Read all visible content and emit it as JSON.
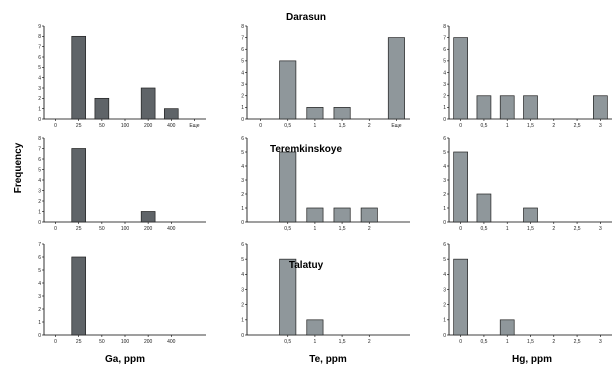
{
  "figure": {
    "ylabel": "Frequency",
    "deposits": [
      "Darasun",
      "Teremkinskoye",
      "Talatuy"
    ],
    "column_labels": [
      "Ga, ppm",
      "Te, ppm",
      "Hg, ppm"
    ],
    "colors": {
      "ga_bar": "#5f6468",
      "te_hg_bar": "#8f979b",
      "edge": "#222222"
    }
  },
  "chart_data": [
    {
      "type": "bar",
      "deposit": "Darasun",
      "element": "Ga",
      "categories": [
        "0",
        "25",
        "50",
        "100",
        "200",
        "400",
        "Еще"
      ],
      "values": [
        0,
        8,
        2,
        0,
        3,
        1,
        0
      ],
      "ylim": [
        0,
        9
      ],
      "grid": false
    },
    {
      "type": "bar",
      "deposit": "Darasun",
      "element": "Te",
      "categories": [
        "0",
        "0,5",
        "1",
        "1,5",
        "2",
        "Еще"
      ],
      "values": [
        0,
        5,
        1,
        1,
        0,
        7
      ],
      "ylim": [
        0,
        8
      ],
      "grid": false
    },
    {
      "type": "bar",
      "deposit": "Darasun",
      "element": "Hg",
      "categories": [
        "0",
        "0,5",
        "1",
        "1,5",
        "2",
        "2,5",
        "3"
      ],
      "values": [
        7,
        2,
        2,
        2,
        0,
        0,
        2
      ],
      "ylim": [
        0,
        8
      ],
      "grid": false
    },
    {
      "type": "bar",
      "deposit": "Teremkinskoye",
      "element": "Ga",
      "categories": [
        "0",
        "25",
        "50",
        "100",
        "200",
        "400"
      ],
      "values": [
        0,
        7,
        0,
        0,
        1,
        0
      ],
      "ylim": [
        0,
        8
      ],
      "grid": false
    },
    {
      "type": "bar",
      "deposit": "Teremkinskoye",
      "element": "Te",
      "categories": [
        "0,5",
        "1",
        "1,5",
        "2"
      ],
      "values": [
        5,
        1,
        1,
        1
      ],
      "ylim": [
        0,
        6
      ],
      "grid": false
    },
    {
      "type": "bar",
      "deposit": "Teremkinskoye",
      "element": "Hg",
      "categories": [
        "0",
        "0,5",
        "1",
        "1,5",
        "2",
        "2,5",
        "3"
      ],
      "values": [
        5,
        2,
        0,
        1,
        0,
        0,
        0
      ],
      "ylim": [
        0,
        6
      ],
      "grid": false
    },
    {
      "type": "bar",
      "deposit": "Talatuy",
      "element": "Ga",
      "categories": [
        "0",
        "25",
        "50",
        "100",
        "200",
        "400"
      ],
      "values": [
        0,
        6,
        0,
        0,
        0,
        0
      ],
      "ylim": [
        0,
        7
      ],
      "grid": false
    },
    {
      "type": "bar",
      "deposit": "Talatuy",
      "element": "Te",
      "categories": [
        "0,5",
        "1",
        "1,5",
        "2"
      ],
      "values": [
        5,
        1,
        0,
        0
      ],
      "ylim": [
        0,
        6
      ],
      "grid": false
    },
    {
      "type": "bar",
      "deposit": "Talatuy",
      "element": "Hg",
      "categories": [
        "0",
        "0,5",
        "1",
        "1,5",
        "2",
        "2,5",
        "3"
      ],
      "values": [
        5,
        0,
        1,
        0,
        0,
        0,
        0
      ],
      "ylim": [
        0,
        6
      ],
      "grid": false
    }
  ]
}
